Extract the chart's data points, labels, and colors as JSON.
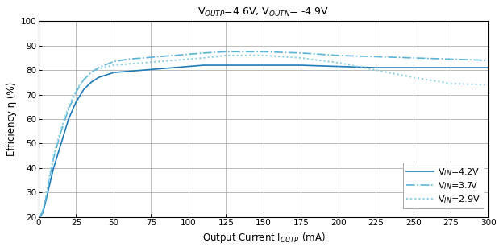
{
  "title": "V$_{OUTP}$=4.6V, V$_{OUTN}$= -4.9V",
  "xlabel": "Output Current I$_{OUTP}$ (mA)",
  "ylabel": "Efficiency η (%)",
  "xlim": [
    0,
    300
  ],
  "ylim": [
    20,
    100
  ],
  "xticks": [
    0,
    25,
    50,
    75,
    100,
    125,
    150,
    175,
    200,
    225,
    250,
    275,
    300
  ],
  "yticks": [
    20,
    30,
    40,
    50,
    60,
    70,
    80,
    90,
    100
  ],
  "bg_color": "#ffffff",
  "grid_color": "#b0b0b0",
  "curves": [
    {
      "label": "V$_{IN}$=4.2V",
      "color": "#1e7ab8",
      "linestyle": "solid",
      "linewidth": 1.2,
      "x": [
        1,
        3,
        5,
        8,
        10,
        15,
        20,
        25,
        30,
        35,
        40,
        50,
        60,
        70,
        80,
        90,
        100,
        110,
        125,
        150,
        175,
        200,
        225,
        250,
        275,
        300
      ],
      "y": [
        20,
        22,
        27,
        35,
        40,
        50,
        60,
        67,
        72,
        75,
        77,
        79,
        79.5,
        80,
        80.5,
        81,
        81.5,
        82,
        82,
        82,
        82,
        81.5,
        81,
        81,
        81,
        81
      ]
    },
    {
      "label": "V$_{IN}$=3.7V",
      "color": "#5ab4d6",
      "linestyle": "dashdot",
      "linewidth": 1.2,
      "x": [
        1,
        3,
        5,
        8,
        10,
        15,
        20,
        25,
        30,
        35,
        40,
        50,
        60,
        70,
        80,
        90,
        100,
        110,
        125,
        150,
        175,
        200,
        225,
        250,
        275,
        300
      ],
      "y": [
        20,
        23,
        28,
        38,
        44,
        55,
        64,
        71,
        76,
        79,
        81,
        83.5,
        84.5,
        85,
        85.5,
        86,
        86.5,
        87,
        87.5,
        87.5,
        87,
        86,
        85.5,
        85,
        84.5,
        84
      ]
    },
    {
      "label": "V$_{IN}$=2.9V",
      "color": "#82cce0",
      "linestyle": "dotted",
      "linewidth": 1.4,
      "x": [
        1,
        3,
        5,
        8,
        10,
        15,
        20,
        25,
        30,
        35,
        40,
        50,
        60,
        70,
        80,
        90,
        100,
        110,
        125,
        150,
        175,
        200,
        225,
        250,
        275,
        300
      ],
      "y": [
        20,
        23,
        29,
        39,
        45,
        56,
        65,
        72,
        76,
        79,
        80.5,
        82,
        82.5,
        83,
        83.5,
        84,
        84.5,
        85,
        86,
        86,
        85,
        83,
        80,
        77,
        74.5,
        74
      ]
    }
  ],
  "figsize": [
    6.24,
    3.12
  ],
  "dpi": 100
}
